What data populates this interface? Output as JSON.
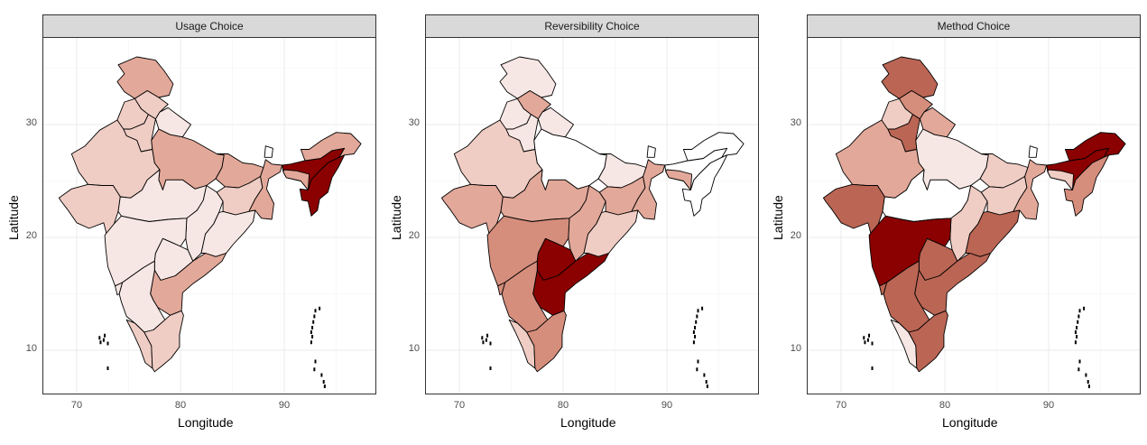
{
  "axes": {
    "xlabel": "Longitude",
    "ylabel": "Latitude",
    "x_ticks": [
      "70",
      "80",
      "90"
    ],
    "y_ticks": [
      "30",
      "20",
      "10"
    ]
  },
  "colors": {
    "fill_scale": [
      "#ffffff",
      "#f7e7e4",
      "#efcdc4",
      "#e2a899",
      "#d58d7c",
      "#bb6554",
      "#8b0000"
    ],
    "border": "#000000",
    "grid": "#ebebeb",
    "strip_background": "#d9d9d9"
  },
  "panels": [
    {
      "title": "Usage Choice",
      "fills": {
        "jk": 3,
        "hp": 2,
        "pb": 2,
        "uk": 1,
        "hr": 2,
        "rj": 2,
        "up": 3,
        "br": 3,
        "gj": 2,
        "mp": 1,
        "cg": 1,
        "jh": 2,
        "wb": 3,
        "od": 1,
        "mh": 1,
        "tg": 1,
        "ap": 3,
        "ka": 1,
        "ga": 1,
        "kl": 2,
        "tn": 2,
        "sk": 0,
        "as": 6,
        "ar": 3,
        "ne": 6,
        "ml": 3
      }
    },
    {
      "title": "Reversibility Choice",
      "fills": {
        "jk": 1,
        "hp": 3,
        "pb": 1,
        "uk": 1,
        "hr": 1,
        "rj": 2,
        "up": 0,
        "br": 1,
        "gj": 3,
        "mp": 3,
        "cg": 3,
        "jh": 3,
        "wb": 3,
        "od": 2,
        "mh": 4,
        "tg": 6,
        "ap": 6,
        "ka": 4,
        "ga": 4,
        "kl": 2,
        "tn": 4,
        "sk": 0,
        "as": 0,
        "ar": 0,
        "ne": 0,
        "ml": 3
      }
    },
    {
      "title": "Method Choice",
      "fills": {
        "jk": 5,
        "hp": 4,
        "pb": 2,
        "uk": 3,
        "hr": 5,
        "rj": 3,
        "up": 1,
        "br": 2,
        "gj": 5,
        "mp": 0,
        "cg": 2,
        "jh": 2,
        "wb": 3,
        "od": 5,
        "mh": 6,
        "tg": 5,
        "ap": 5,
        "ka": 5,
        "ga": 5,
        "kl": 1,
        "tn": 5,
        "sk": 0,
        "as": 6,
        "ar": 6,
        "ne": 4,
        "ml": 2
      }
    }
  ]
}
